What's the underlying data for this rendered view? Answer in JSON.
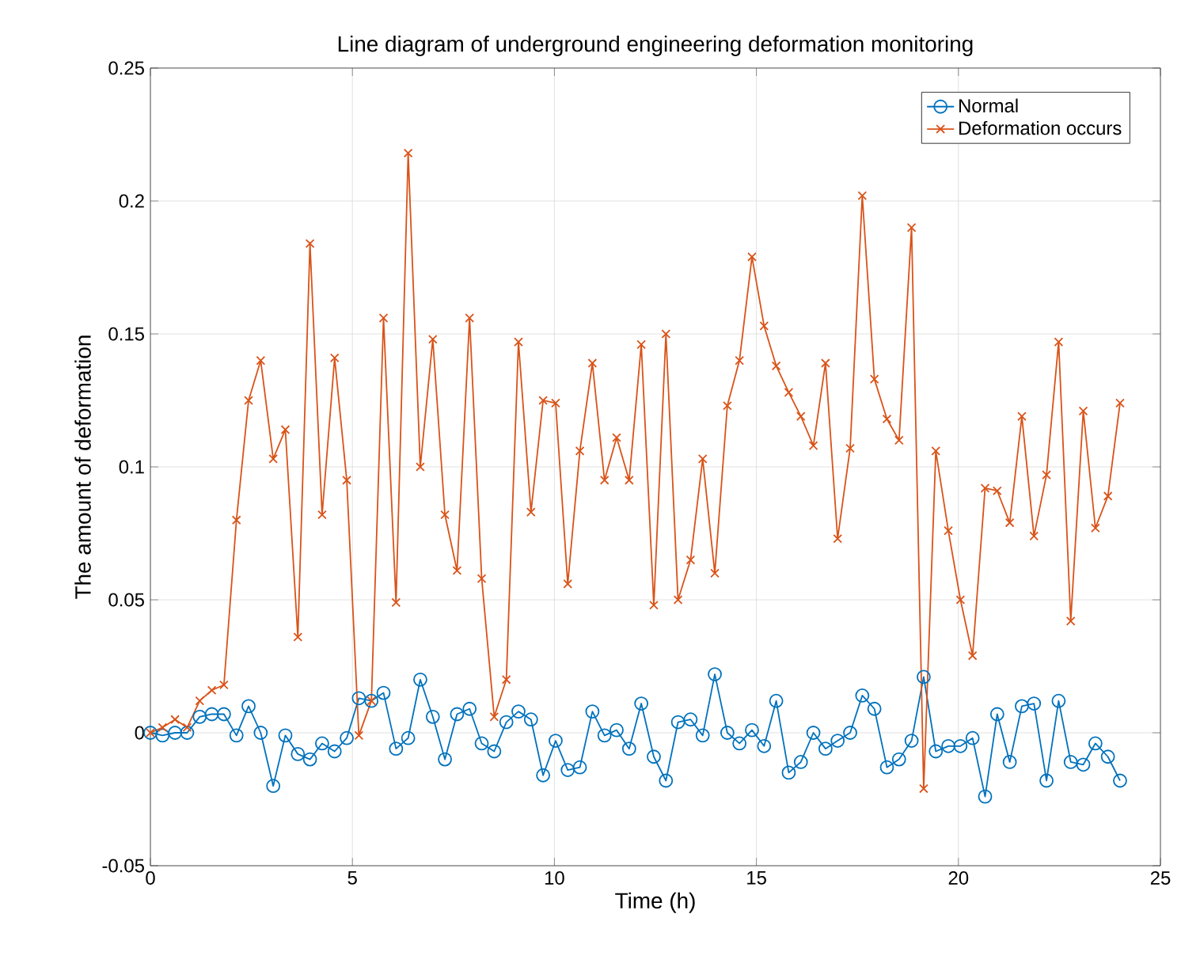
{
  "chart_data": {
    "type": "line",
    "title": "Line diagram of underground engineering deformation monitoring",
    "xlabel": "Time (h)",
    "ylabel": "The amount of deformation",
    "x": [
      0,
      0.3,
      0.61,
      0.91,
      1.22,
      1.52,
      1.82,
      2.13,
      2.43,
      2.73,
      3.04,
      3.34,
      3.65,
      3.95,
      4.25,
      4.56,
      4.86,
      5.16,
      5.47,
      5.77,
      6.08,
      6.38,
      6.68,
      6.99,
      7.29,
      7.59,
      7.9,
      8.2,
      8.51,
      8.81,
      9.11,
      9.42,
      9.72,
      10.03,
      10.33,
      10.63,
      10.94,
      11.24,
      11.54,
      11.85,
      12.15,
      12.46,
      12.76,
      13.06,
      13.37,
      13.67,
      13.97,
      14.28,
      14.58,
      14.89,
      15.19,
      15.49,
      15.8,
      16.1,
      16.41,
      16.71,
      17.01,
      17.32,
      17.62,
      17.92,
      18.23,
      18.53,
      18.84,
      19.14,
      19.44,
      19.75,
      20.05,
      20.35,
      20.66,
      20.96,
      21.27,
      21.57,
      21.87,
      22.18,
      22.48,
      22.78,
      23.09,
      23.39,
      23.7,
      24.0
    ],
    "series": [
      {
        "name": "Normal",
        "color": "#0072bd",
        "marker": "circle",
        "values": [
          0.0,
          -0.001,
          0.0,
          0.0,
          0.006,
          0.007,
          0.007,
          -0.001,
          0.01,
          0.0,
          -0.02,
          -0.001,
          -0.008,
          -0.01,
          -0.004,
          -0.007,
          -0.002,
          0.013,
          0.012,
          0.015,
          -0.006,
          -0.002,
          0.02,
          0.006,
          -0.01,
          0.007,
          0.009,
          -0.004,
          -0.007,
          0.004,
          0.008,
          0.005,
          -0.016,
          -0.003,
          -0.014,
          -0.013,
          0.008,
          -0.001,
          0.001,
          -0.006,
          0.011,
          -0.009,
          -0.018,
          0.004,
          0.005,
          -0.001,
          0.022,
          0.0,
          -0.004,
          0.001,
          -0.005,
          0.012,
          -0.015,
          -0.011,
          0.0,
          -0.006,
          -0.003,
          0.0,
          0.014,
          0.009,
          -0.013,
          -0.01,
          -0.003,
          0.021,
          -0.007,
          -0.005,
          -0.005,
          -0.002,
          -0.024,
          0.007,
          -0.011,
          0.01,
          0.011,
          -0.018,
          0.012,
          -0.011,
          -0.012,
          -0.004,
          -0.009,
          -0.018
        ]
      },
      {
        "name": "Deformation occurs",
        "color": "#d95319",
        "marker": "cross",
        "values": [
          0.0,
          0.002,
          0.005,
          0.002,
          0.012,
          0.016,
          0.018,
          0.08,
          0.125,
          0.14,
          0.103,
          0.114,
          0.036,
          0.184,
          0.082,
          0.141,
          0.095,
          -0.001,
          0.012,
          0.156,
          0.049,
          0.218,
          0.1,
          0.148,
          0.082,
          0.061,
          0.156,
          0.058,
          0.006,
          0.02,
          0.147,
          0.083,
          0.125,
          0.124,
          0.056,
          0.106,
          0.139,
          0.095,
          0.111,
          0.095,
          0.146,
          0.048,
          0.15,
          0.05,
          0.065,
          0.103,
          0.06,
          0.123,
          0.14,
          0.179,
          0.153,
          0.138,
          0.128,
          0.119,
          0.108,
          0.139,
          0.073,
          0.107,
          0.202,
          0.133,
          0.118,
          0.11,
          0.19,
          -0.021,
          0.106,
          0.076,
          0.05,
          0.029,
          0.092,
          0.091,
          0.079,
          0.119,
          0.074,
          0.097,
          0.147,
          0.042,
          0.121,
          0.077,
          0.089,
          0.124
        ]
      }
    ],
    "xlim": [
      0,
      25
    ],
    "ylim": [
      -0.05,
      0.25
    ],
    "xticks": [
      0,
      5,
      10,
      15,
      20,
      25
    ],
    "yticks": [
      -0.05,
      0,
      0.05,
      0.1,
      0.15,
      0.2,
      0.25
    ],
    "grid": true,
    "legend": "top right",
    "line_style": "solid"
  }
}
